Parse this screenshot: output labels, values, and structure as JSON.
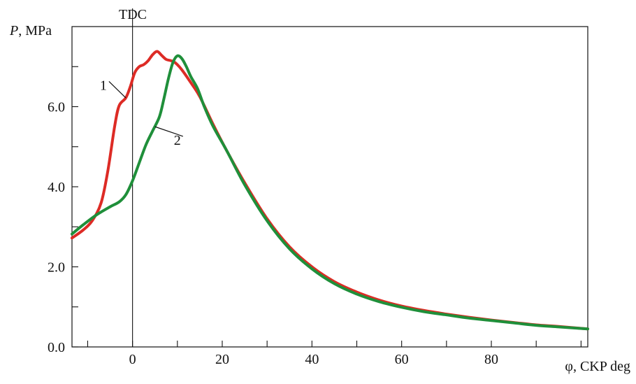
{
  "chart_data": {
    "type": "line",
    "xlabel": "φ, CKP deg",
    "ylabel_symbol": "P",
    "ylabel_unit": ", MPa",
    "marker_label": "TDC",
    "marker_x": 0,
    "xlim": [
      -13.5,
      101.5
    ],
    "ylim": [
      0,
      8.0
    ],
    "x_ticks": [
      0,
      20,
      40,
      60,
      80
    ],
    "y_ticks": [
      0,
      2,
      4,
      6
    ],
    "x_tick_labels": [
      "0",
      "20",
      "40",
      "60",
      "80"
    ],
    "y_tick_labels": [
      "0.0",
      "2.0",
      "4.0",
      "6.0"
    ],
    "grid": false,
    "series": [
      {
        "name": "1",
        "color": "#dd2b25",
        "points": [
          [
            -13.5,
            2.72
          ],
          [
            -11,
            2.92
          ],
          [
            -9,
            3.15
          ],
          [
            -7,
            3.6
          ],
          [
            -5.5,
            4.4
          ],
          [
            -4,
            5.5
          ],
          [
            -3,
            6.02
          ],
          [
            -1.5,
            6.22
          ],
          [
            -0.5,
            6.5
          ],
          [
            0.5,
            6.85
          ],
          [
            1.5,
            7.0
          ],
          [
            2.5,
            7.05
          ],
          [
            3.5,
            7.15
          ],
          [
            4.5,
            7.3
          ],
          [
            5.5,
            7.38
          ],
          [
            6.5,
            7.28
          ],
          [
            7.5,
            7.18
          ],
          [
            8.5,
            7.15
          ],
          [
            9.5,
            7.1
          ],
          [
            11,
            6.92
          ],
          [
            13,
            6.6
          ],
          [
            15,
            6.25
          ],
          [
            18,
            5.55
          ],
          [
            21,
            4.9
          ],
          [
            25,
            4.1
          ],
          [
            30,
            3.2
          ],
          [
            35,
            2.5
          ],
          [
            40,
            2.0
          ],
          [
            45,
            1.63
          ],
          [
            50,
            1.37
          ],
          [
            55,
            1.17
          ],
          [
            60,
            1.02
          ],
          [
            65,
            0.91
          ],
          [
            70,
            0.82
          ],
          [
            75,
            0.74
          ],
          [
            80,
            0.67
          ],
          [
            85,
            0.61
          ],
          [
            90,
            0.55
          ],
          [
            95,
            0.51
          ],
          [
            101.5,
            0.45
          ]
        ]
      },
      {
        "name": "2",
        "color": "#1f8f3a",
        "points": [
          [
            -13.5,
            2.82
          ],
          [
            -11,
            3.05
          ],
          [
            -8,
            3.3
          ],
          [
            -5,
            3.5
          ],
          [
            -3,
            3.62
          ],
          [
            -1.5,
            3.8
          ],
          [
            0,
            4.15
          ],
          [
            1.5,
            4.6
          ],
          [
            3,
            5.05
          ],
          [
            4.5,
            5.4
          ],
          [
            6,
            5.75
          ],
          [
            7,
            6.2
          ],
          [
            8,
            6.7
          ],
          [
            9,
            7.1
          ],
          [
            10,
            7.27
          ],
          [
            11,
            7.2
          ],
          [
            12,
            7.0
          ],
          [
            13,
            6.75
          ],
          [
            14.5,
            6.45
          ],
          [
            16,
            6.0
          ],
          [
            18,
            5.5
          ],
          [
            21,
            4.9
          ],
          [
            25,
            4.05
          ],
          [
            30,
            3.15
          ],
          [
            35,
            2.45
          ],
          [
            40,
            1.95
          ],
          [
            45,
            1.58
          ],
          [
            50,
            1.32
          ],
          [
            55,
            1.13
          ],
          [
            60,
            0.99
          ],
          [
            65,
            0.88
          ],
          [
            70,
            0.8
          ],
          [
            75,
            0.72
          ],
          [
            80,
            0.66
          ],
          [
            85,
            0.6
          ],
          [
            90,
            0.54
          ],
          [
            95,
            0.5
          ],
          [
            101.5,
            0.45
          ]
        ]
      }
    ],
    "annotations": [
      {
        "text": "1",
        "series_index": 0,
        "point": [
          -1.5,
          6.22
        ],
        "label_pos": [
          -6.5,
          6.42
        ]
      },
      {
        "text": "2",
        "series_index": 1,
        "point": [
          5,
          5.5
        ],
        "label_pos": [
          10,
          5.05
        ]
      }
    ]
  }
}
